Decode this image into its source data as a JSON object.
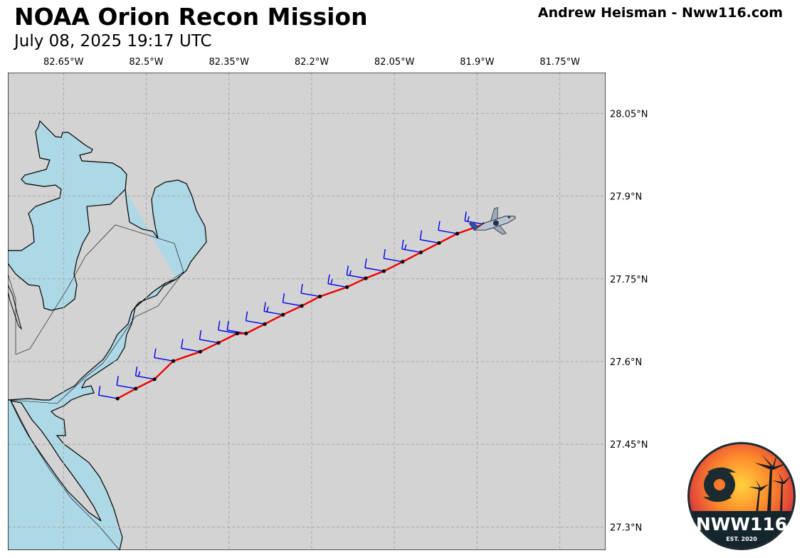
{
  "header": {
    "title": "NOAA Orion Recon Mission",
    "subtitle": "July 08, 2025 19:17 UTC",
    "credit": "Andrew Heisman - Nww116.com"
  },
  "map": {
    "extent": {
      "lon_min": -82.751,
      "lon_max": -81.667,
      "lat_min": 27.258,
      "lat_max": 28.124
    },
    "colors": {
      "land": "#d3d3d3",
      "water": "#add8e6",
      "track": "#ee0000",
      "barbs": "#0000ee",
      "fixes": "#000000",
      "grid": "#a8a8a8"
    },
    "lon_ticks": [
      {
        "value": -82.65,
        "label": "82.65°W"
      },
      {
        "value": -82.5,
        "label": "82.5°W"
      },
      {
        "value": -82.35,
        "label": "82.35°W"
      },
      {
        "value": -82.2,
        "label": "82.2°W"
      },
      {
        "value": -82.05,
        "label": "82.05°W"
      },
      {
        "value": -81.9,
        "label": "81.9°W"
      },
      {
        "value": -81.75,
        "label": "81.75°W"
      }
    ],
    "lat_ticks": [
      {
        "value": 28.05,
        "label": "28.05°N"
      },
      {
        "value": 27.9,
        "label": "27.9°N"
      },
      {
        "value": 27.75,
        "label": "27.75°N"
      },
      {
        "value": 27.6,
        "label": "27.6°N"
      },
      {
        "value": 27.45,
        "label": "27.45°N"
      },
      {
        "value": 27.3,
        "label": "27.3°N"
      }
    ],
    "flight_track": [
      [
        -82.552,
        27.533
      ],
      [
        -82.519,
        27.551
      ],
      [
        -82.485,
        27.568
      ],
      [
        -82.451,
        27.601
      ],
      [
        -82.402,
        27.618
      ],
      [
        -82.369,
        27.634
      ],
      [
        -82.335,
        27.651
      ],
      [
        -82.319,
        27.651
      ],
      [
        -82.285,
        27.668
      ],
      [
        -82.252,
        27.685
      ],
      [
        -82.218,
        27.701
      ],
      [
        -82.185,
        27.718
      ],
      [
        -82.136,
        27.735
      ],
      [
        -82.102,
        27.751
      ],
      [
        -82.069,
        27.764
      ],
      [
        -82.035,
        27.781
      ],
      [
        -82.002,
        27.798
      ],
      [
        -81.969,
        27.815
      ],
      [
        -81.936,
        27.832
      ],
      [
        -81.888,
        27.849
      ]
    ],
    "wind_barb_knots": [
      10,
      10,
      15,
      10,
      10,
      10,
      10,
      10,
      10,
      15,
      10,
      10,
      15,
      15,
      10,
      10,
      15,
      10,
      10,
      15
    ],
    "aircraft": "P-3 Orion aircraft icon"
  },
  "logo": {
    "text": "NWW116",
    "subtext": "EST. 2020",
    "icon": "hurricane-icon"
  }
}
